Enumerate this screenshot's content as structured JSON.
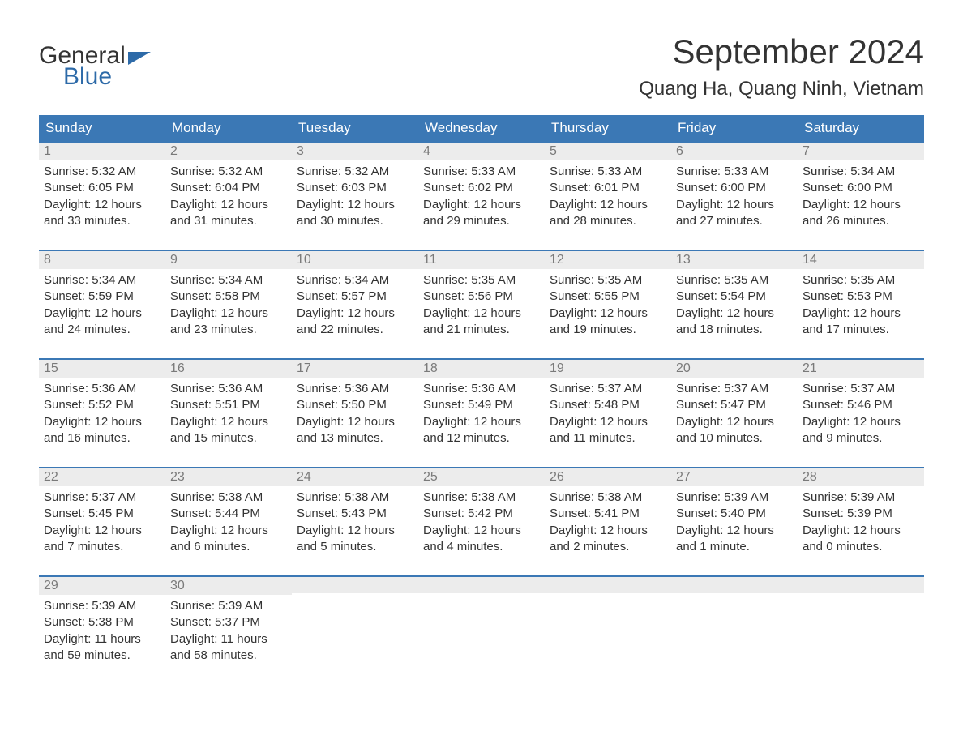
{
  "brand": {
    "general": "General",
    "blue": "Blue"
  },
  "title": "September 2024",
  "location": "Quang Ha, Quang Ninh, Vietnam",
  "colors": {
    "header_bg": "#3b78b5",
    "header_text": "#ffffff",
    "daynum_bg": "#ececec",
    "daynum_text": "#7a7a7a",
    "border": "#3b78b5",
    "body_text": "#333333",
    "logo_blue": "#2d6aa8",
    "background": "#ffffff"
  },
  "typography": {
    "title_fontsize": 42,
    "location_fontsize": 24,
    "dayheader_fontsize": 17,
    "daynum_fontsize": 16,
    "body_fontsize": 15
  },
  "day_headers": [
    "Sunday",
    "Monday",
    "Tuesday",
    "Wednesday",
    "Thursday",
    "Friday",
    "Saturday"
  ],
  "weeks": [
    [
      {
        "n": "1",
        "sunrise": "Sunrise: 5:32 AM",
        "sunset": "Sunset: 6:05 PM",
        "d1": "Daylight: 12 hours",
        "d2": "and 33 minutes."
      },
      {
        "n": "2",
        "sunrise": "Sunrise: 5:32 AM",
        "sunset": "Sunset: 6:04 PM",
        "d1": "Daylight: 12 hours",
        "d2": "and 31 minutes."
      },
      {
        "n": "3",
        "sunrise": "Sunrise: 5:32 AM",
        "sunset": "Sunset: 6:03 PM",
        "d1": "Daylight: 12 hours",
        "d2": "and 30 minutes."
      },
      {
        "n": "4",
        "sunrise": "Sunrise: 5:33 AM",
        "sunset": "Sunset: 6:02 PM",
        "d1": "Daylight: 12 hours",
        "d2": "and 29 minutes."
      },
      {
        "n": "5",
        "sunrise": "Sunrise: 5:33 AM",
        "sunset": "Sunset: 6:01 PM",
        "d1": "Daylight: 12 hours",
        "d2": "and 28 minutes."
      },
      {
        "n": "6",
        "sunrise": "Sunrise: 5:33 AM",
        "sunset": "Sunset: 6:00 PM",
        "d1": "Daylight: 12 hours",
        "d2": "and 27 minutes."
      },
      {
        "n": "7",
        "sunrise": "Sunrise: 5:34 AM",
        "sunset": "Sunset: 6:00 PM",
        "d1": "Daylight: 12 hours",
        "d2": "and 26 minutes."
      }
    ],
    [
      {
        "n": "8",
        "sunrise": "Sunrise: 5:34 AM",
        "sunset": "Sunset: 5:59 PM",
        "d1": "Daylight: 12 hours",
        "d2": "and 24 minutes."
      },
      {
        "n": "9",
        "sunrise": "Sunrise: 5:34 AM",
        "sunset": "Sunset: 5:58 PM",
        "d1": "Daylight: 12 hours",
        "d2": "and 23 minutes."
      },
      {
        "n": "10",
        "sunrise": "Sunrise: 5:34 AM",
        "sunset": "Sunset: 5:57 PM",
        "d1": "Daylight: 12 hours",
        "d2": "and 22 minutes."
      },
      {
        "n": "11",
        "sunrise": "Sunrise: 5:35 AM",
        "sunset": "Sunset: 5:56 PM",
        "d1": "Daylight: 12 hours",
        "d2": "and 21 minutes."
      },
      {
        "n": "12",
        "sunrise": "Sunrise: 5:35 AM",
        "sunset": "Sunset: 5:55 PM",
        "d1": "Daylight: 12 hours",
        "d2": "and 19 minutes."
      },
      {
        "n": "13",
        "sunrise": "Sunrise: 5:35 AM",
        "sunset": "Sunset: 5:54 PM",
        "d1": "Daylight: 12 hours",
        "d2": "and 18 minutes."
      },
      {
        "n": "14",
        "sunrise": "Sunrise: 5:35 AM",
        "sunset": "Sunset: 5:53 PM",
        "d1": "Daylight: 12 hours",
        "d2": "and 17 minutes."
      }
    ],
    [
      {
        "n": "15",
        "sunrise": "Sunrise: 5:36 AM",
        "sunset": "Sunset: 5:52 PM",
        "d1": "Daylight: 12 hours",
        "d2": "and 16 minutes."
      },
      {
        "n": "16",
        "sunrise": "Sunrise: 5:36 AM",
        "sunset": "Sunset: 5:51 PM",
        "d1": "Daylight: 12 hours",
        "d2": "and 15 minutes."
      },
      {
        "n": "17",
        "sunrise": "Sunrise: 5:36 AM",
        "sunset": "Sunset: 5:50 PM",
        "d1": "Daylight: 12 hours",
        "d2": "and 13 minutes."
      },
      {
        "n": "18",
        "sunrise": "Sunrise: 5:36 AM",
        "sunset": "Sunset: 5:49 PM",
        "d1": "Daylight: 12 hours",
        "d2": "and 12 minutes."
      },
      {
        "n": "19",
        "sunrise": "Sunrise: 5:37 AM",
        "sunset": "Sunset: 5:48 PM",
        "d1": "Daylight: 12 hours",
        "d2": "and 11 minutes."
      },
      {
        "n": "20",
        "sunrise": "Sunrise: 5:37 AM",
        "sunset": "Sunset: 5:47 PM",
        "d1": "Daylight: 12 hours",
        "d2": "and 10 minutes."
      },
      {
        "n": "21",
        "sunrise": "Sunrise: 5:37 AM",
        "sunset": "Sunset: 5:46 PM",
        "d1": "Daylight: 12 hours",
        "d2": "and 9 minutes."
      }
    ],
    [
      {
        "n": "22",
        "sunrise": "Sunrise: 5:37 AM",
        "sunset": "Sunset: 5:45 PM",
        "d1": "Daylight: 12 hours",
        "d2": "and 7 minutes."
      },
      {
        "n": "23",
        "sunrise": "Sunrise: 5:38 AM",
        "sunset": "Sunset: 5:44 PM",
        "d1": "Daylight: 12 hours",
        "d2": "and 6 minutes."
      },
      {
        "n": "24",
        "sunrise": "Sunrise: 5:38 AM",
        "sunset": "Sunset: 5:43 PM",
        "d1": "Daylight: 12 hours",
        "d2": "and 5 minutes."
      },
      {
        "n": "25",
        "sunrise": "Sunrise: 5:38 AM",
        "sunset": "Sunset: 5:42 PM",
        "d1": "Daylight: 12 hours",
        "d2": "and 4 minutes."
      },
      {
        "n": "26",
        "sunrise": "Sunrise: 5:38 AM",
        "sunset": "Sunset: 5:41 PM",
        "d1": "Daylight: 12 hours",
        "d2": "and 2 minutes."
      },
      {
        "n": "27",
        "sunrise": "Sunrise: 5:39 AM",
        "sunset": "Sunset: 5:40 PM",
        "d1": "Daylight: 12 hours",
        "d2": "and 1 minute."
      },
      {
        "n": "28",
        "sunrise": "Sunrise: 5:39 AM",
        "sunset": "Sunset: 5:39 PM",
        "d1": "Daylight: 12 hours",
        "d2": "and 0 minutes."
      }
    ],
    [
      {
        "n": "29",
        "sunrise": "Sunrise: 5:39 AM",
        "sunset": "Sunset: 5:38 PM",
        "d1": "Daylight: 11 hours",
        "d2": "and 59 minutes."
      },
      {
        "n": "30",
        "sunrise": "Sunrise: 5:39 AM",
        "sunset": "Sunset: 5:37 PM",
        "d1": "Daylight: 11 hours",
        "d2": "and 58 minutes."
      },
      {
        "empty": true
      },
      {
        "empty": true
      },
      {
        "empty": true
      },
      {
        "empty": true
      },
      {
        "empty": true
      }
    ]
  ]
}
